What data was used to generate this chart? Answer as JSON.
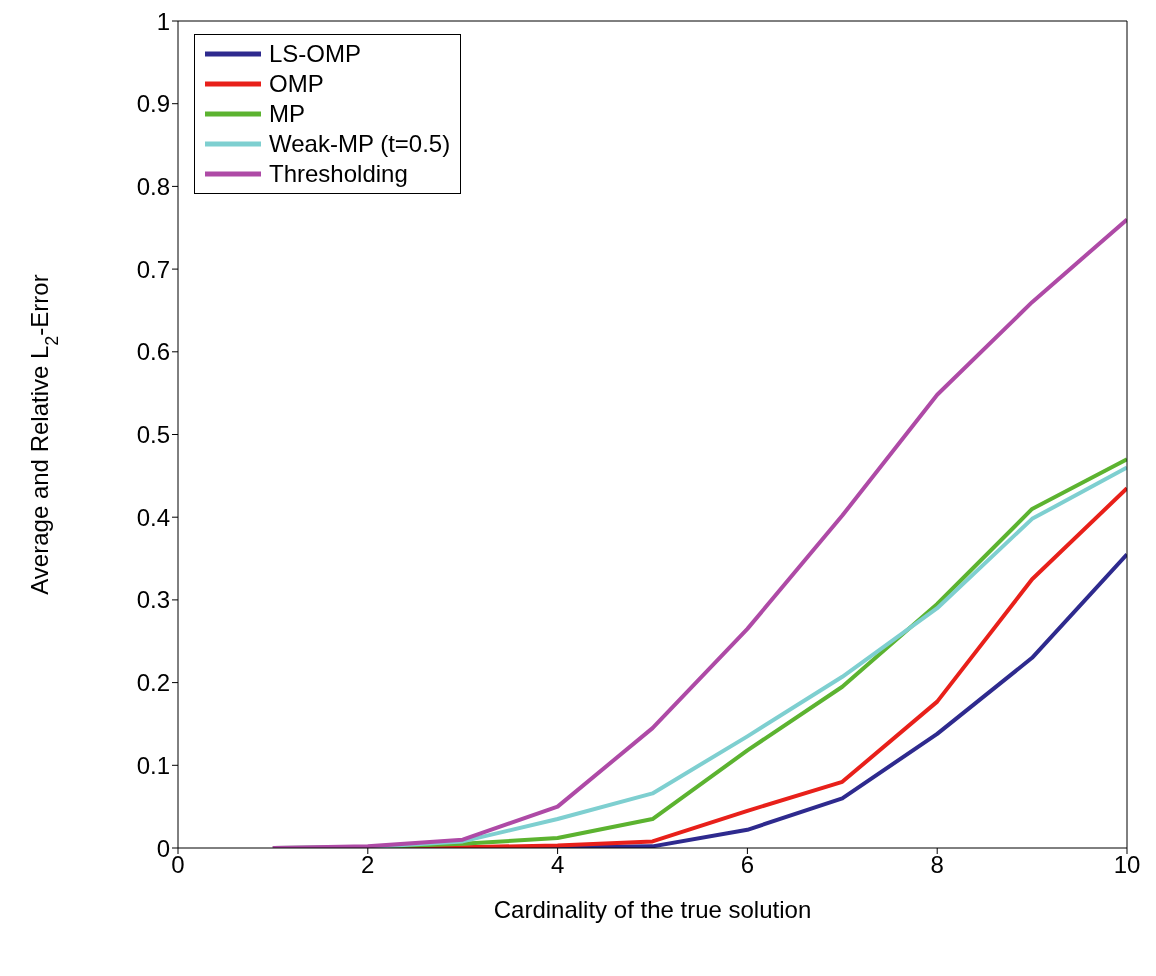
{
  "chart_data": {
    "type": "line",
    "xlabel": "Cardinality of the true solution",
    "ylabel": "Average and Relative L$_{2}$-Error",
    "x": [
      1,
      2,
      3,
      4,
      5,
      6,
      7,
      8,
      9,
      10
    ],
    "xlim": [
      0,
      10
    ],
    "xticks": [
      0,
      2,
      4,
      6,
      8,
      10
    ],
    "ylim": [
      0,
      1
    ],
    "yticks": [
      0,
      0.1,
      0.2,
      0.3,
      0.4,
      0.5,
      0.6,
      0.7,
      0.8,
      0.9,
      1
    ],
    "grid": false,
    "legend": "top left",
    "marker": "none",
    "line_style": "solid",
    "series": [
      {
        "name": "LS-OMP",
        "color": "#2e2a8e",
        "values": [
          0,
          0,
          0,
          0.001,
          0.002,
          0.022,
          0.06,
          0.138,
          0.23,
          0.355
        ]
      },
      {
        "name": "OMP",
        "color": "#e8201a",
        "values": [
          0,
          0,
          0.001,
          0.003,
          0.008,
          0.045,
          0.08,
          0.177,
          0.325,
          0.435
        ]
      },
      {
        "name": "MP",
        "color": "#5cb330",
        "values": [
          0,
          0.001,
          0.005,
          0.012,
          0.035,
          0.118,
          0.195,
          0.295,
          0.41,
          0.47
        ]
      },
      {
        "name": "Weak-MP (t=0.5)",
        "color": "#7ecfd0",
        "values": [
          0,
          0.001,
          0.008,
          0.035,
          0.066,
          0.135,
          0.207,
          0.29,
          0.398,
          0.46
        ]
      },
      {
        "name": "Thresholding",
        "color": "#ae4aa6",
        "values": [
          0,
          0.002,
          0.01,
          0.05,
          0.145,
          0.265,
          0.402,
          0.548,
          0.66,
          0.76
        ]
      }
    ]
  }
}
